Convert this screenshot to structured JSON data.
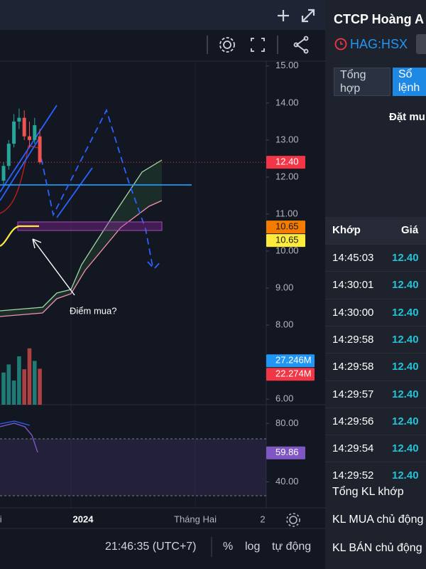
{
  "chart": {
    "ylim": [
      5.85,
      15.13
    ],
    "yticks": [
      {
        "value": 15,
        "label": "15.00"
      },
      {
        "value": 14,
        "label": "14.00"
      },
      {
        "value": 13,
        "label": "13.00"
      },
      {
        "value": 12,
        "label": "12.00"
      },
      {
        "value": 11,
        "label": "11.00"
      },
      {
        "value": 10,
        "label": "10.00"
      },
      {
        "value": 9,
        "label": "9.00"
      },
      {
        "value": 8,
        "label": "8.00"
      },
      {
        "value": 6,
        "label": "6.00"
      }
    ],
    "last_price": {
      "value": 12.4,
      "label": "12.40",
      "color": "#f23645"
    },
    "ma_tags": [
      {
        "value": 10.65,
        "label": "10.65",
        "color": "#f57c00"
      },
      {
        "value": 10.65,
        "label": "10.65",
        "color": "#ffeb3b"
      }
    ],
    "annotation": "Điểm mua?",
    "candles": [
      [
        11.9,
        12.4,
        11.8,
        12.3
      ],
      [
        12.3,
        13.0,
        12.2,
        12.9
      ],
      [
        12.9,
        13.7,
        12.8,
        13.5
      ],
      [
        13.5,
        13.85,
        13.3,
        13.6
      ],
      [
        13.6,
        13.8,
        13.0,
        13.1
      ],
      [
        13.1,
        13.5,
        12.8,
        13.0
      ],
      [
        13.0,
        13.6,
        12.9,
        13.4
      ],
      [
        13.1,
        13.3,
        12.35,
        12.4
      ]
    ],
    "volume": {
      "ylim": [
        0,
        39.3
      ],
      "values": [
        20,
        25,
        15,
        30,
        22,
        35,
        27.2,
        22.3
      ],
      "tags": [
        {
          "value": 27.246,
          "label": "27.246M",
          "color": "#2196f3"
        },
        {
          "value": 22.274,
          "label": "22.274M",
          "color": "#f23645"
        }
      ]
    },
    "rsi": {
      "ylim": [
        22.2,
        92.84
      ],
      "yticks": [
        {
          "value": 80,
          "label": "80.00"
        },
        {
          "value": 40,
          "label": "40.00"
        }
      ],
      "tag": {
        "value": 59.86,
        "label": "59.86",
        "color": "#7e57c2"
      }
    },
    "x_labels": [
      "hai",
      "2024",
      "Tháng Hai",
      "2"
    ]
  },
  "bottom_bar": {
    "time": "21:46:35 (UTC+7)",
    "options": [
      "%",
      "log",
      "tự động"
    ]
  },
  "panel": {
    "company": "CTCP Hoàng A",
    "ticker": "HAG:HSX",
    "tabs": [
      "Tổng hợp",
      "Sổ lệnh"
    ],
    "order_title": "Đặt mu",
    "trades": {
      "header": [
        "Khớp",
        "Giá"
      ],
      "rows": [
        [
          "14:45:03",
          "12.40"
        ],
        [
          "14:30:01",
          "12.40"
        ],
        [
          "14:30:00",
          "12.40"
        ],
        [
          "14:29:58",
          "12.40"
        ],
        [
          "14:29:58",
          "12.40"
        ],
        [
          "14:29:57",
          "12.40"
        ],
        [
          "14:29:56",
          "12.40"
        ],
        [
          "14:29:54",
          "12.40"
        ],
        [
          "14:29:52",
          "12.40"
        ]
      ]
    },
    "summary": [
      "Tổng KL khớp",
      "KL MUA chủ động",
      "KL BÁN chủ động"
    ]
  }
}
